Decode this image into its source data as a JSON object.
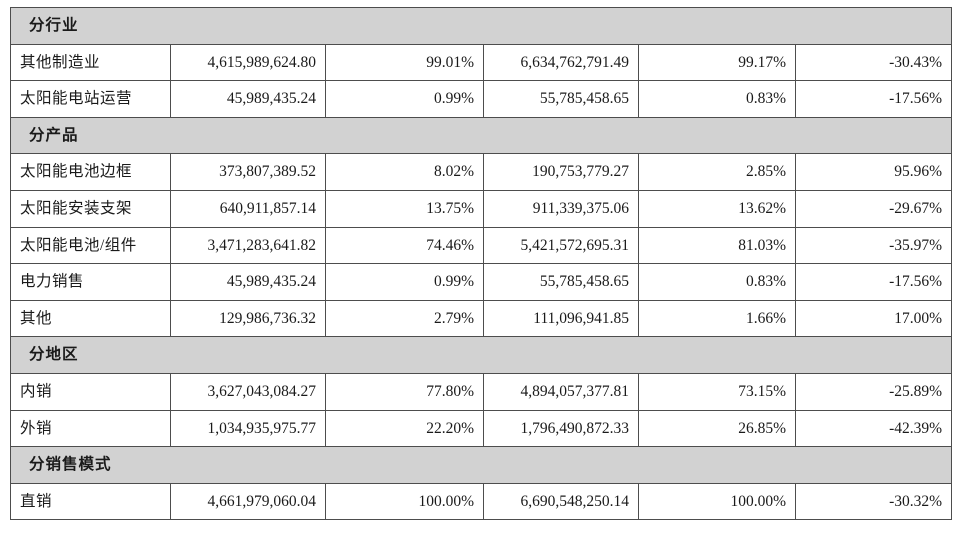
{
  "colors": {
    "section_header_bg": "#d2d2d2",
    "border": "#4d4d4d",
    "text": "#1a1a1a",
    "row_bg": "#ffffff",
    "page_bg": "#ffffff"
  },
  "table": {
    "columns_per_row": 6,
    "sections": [
      {
        "header": "分行业",
        "rows": [
          {
            "label": "其他制造业",
            "values": [
              "4,615,989,624.80",
              "99.01%",
              "6,634,762,791.49",
              "99.17%",
              "-30.43%"
            ]
          },
          {
            "label": "太阳能电站运营",
            "values": [
              "45,989,435.24",
              "0.99%",
              "55,785,458.65",
              "0.83%",
              "-17.56%"
            ]
          }
        ]
      },
      {
        "header": "分产品",
        "rows": [
          {
            "label": "太阳能电池边框",
            "values": [
              "373,807,389.52",
              "8.02%",
              "190,753,779.27",
              "2.85%",
              "95.96%"
            ]
          },
          {
            "label": "太阳能安装支架",
            "values": [
              "640,911,857.14",
              "13.75%",
              "911,339,375.06",
              "13.62%",
              "-29.67%"
            ]
          },
          {
            "label": "太阳能电池/组件",
            "values": [
              "3,471,283,641.82",
              "74.46%",
              "5,421,572,695.31",
              "81.03%",
              "-35.97%"
            ]
          },
          {
            "label": "电力销售",
            "values": [
              "45,989,435.24",
              "0.99%",
              "55,785,458.65",
              "0.83%",
              "-17.56%"
            ]
          },
          {
            "label": "其他",
            "values": [
              "129,986,736.32",
              "2.79%",
              "111,096,941.85",
              "1.66%",
              "17.00%"
            ]
          }
        ]
      },
      {
        "header": "分地区",
        "rows": [
          {
            "label": "内销",
            "values": [
              "3,627,043,084.27",
              "77.80%",
              "4,894,057,377.81",
              "73.15%",
              "-25.89%"
            ]
          },
          {
            "label": "外销",
            "values": [
              "1,034,935,975.77",
              "22.20%",
              "1,796,490,872.33",
              "26.85%",
              "-42.39%"
            ]
          }
        ]
      },
      {
        "header": "分销售模式",
        "rows": [
          {
            "label": "直销",
            "values": [
              "4,661,979,060.04",
              "100.00%",
              "6,690,548,250.14",
              "100.00%",
              "-30.32%"
            ]
          }
        ]
      }
    ]
  }
}
